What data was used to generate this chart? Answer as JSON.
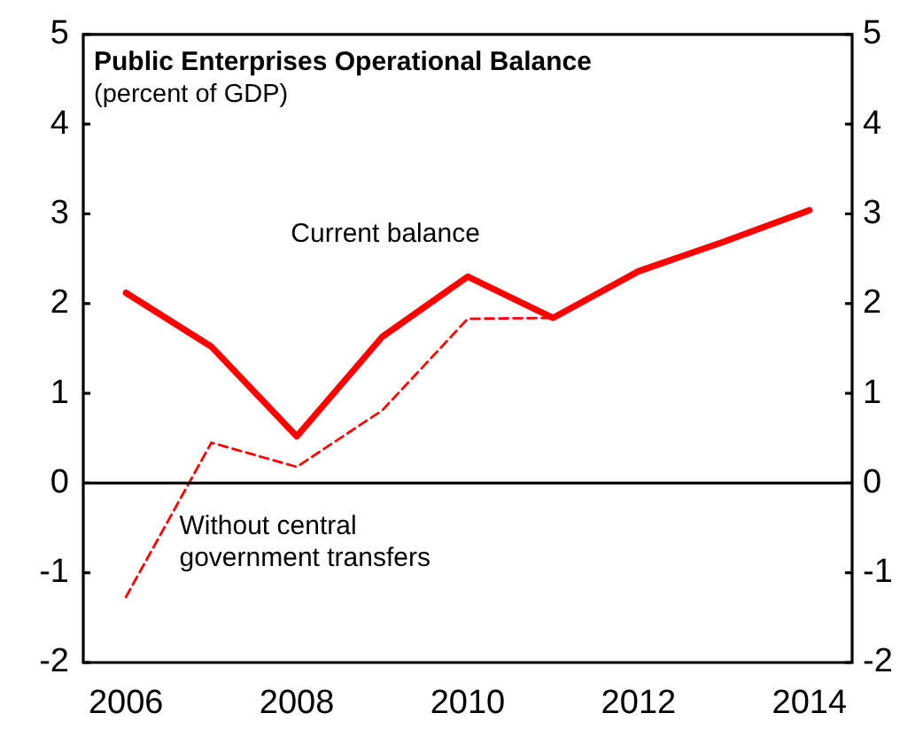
{
  "chart_data": {
    "type": "line",
    "title": "Public Enterprises Operational Balance",
    "subtitle": "(percent of GDP)",
    "categories": [
      "2006",
      null,
      "2008",
      null,
      "2010",
      null,
      "2012",
      null,
      "2014"
    ],
    "series": [
      {
        "name": "Current balance",
        "color": "#ff0000",
        "line_style": "solid",
        "values": [
          2.12,
          1.52,
          0.52,
          1.63,
          2.3,
          1.84,
          2.36,
          2.69,
          3.04
        ]
      },
      {
        "name": "Without central government transfers",
        "color": "#ff0000",
        "line_style": "dashed",
        "values": [
          -1.27,
          0.45,
          0.18,
          0.81,
          1.83,
          1.84,
          null,
          null,
          null
        ]
      }
    ],
    "ylim": [
      -2,
      5
    ],
    "yticks": [
      -2,
      -1,
      0,
      1,
      2,
      3,
      4,
      5
    ],
    "y2lim": [
      -2,
      5
    ],
    "y2ticks": [
      -2,
      -1,
      0,
      1,
      2,
      3,
      4,
      5
    ],
    "ref_lines": [
      {
        "axis": "y",
        "value": 0,
        "color": "#000000"
      }
    ],
    "grid": false,
    "legend": false,
    "marker": "none"
  }
}
